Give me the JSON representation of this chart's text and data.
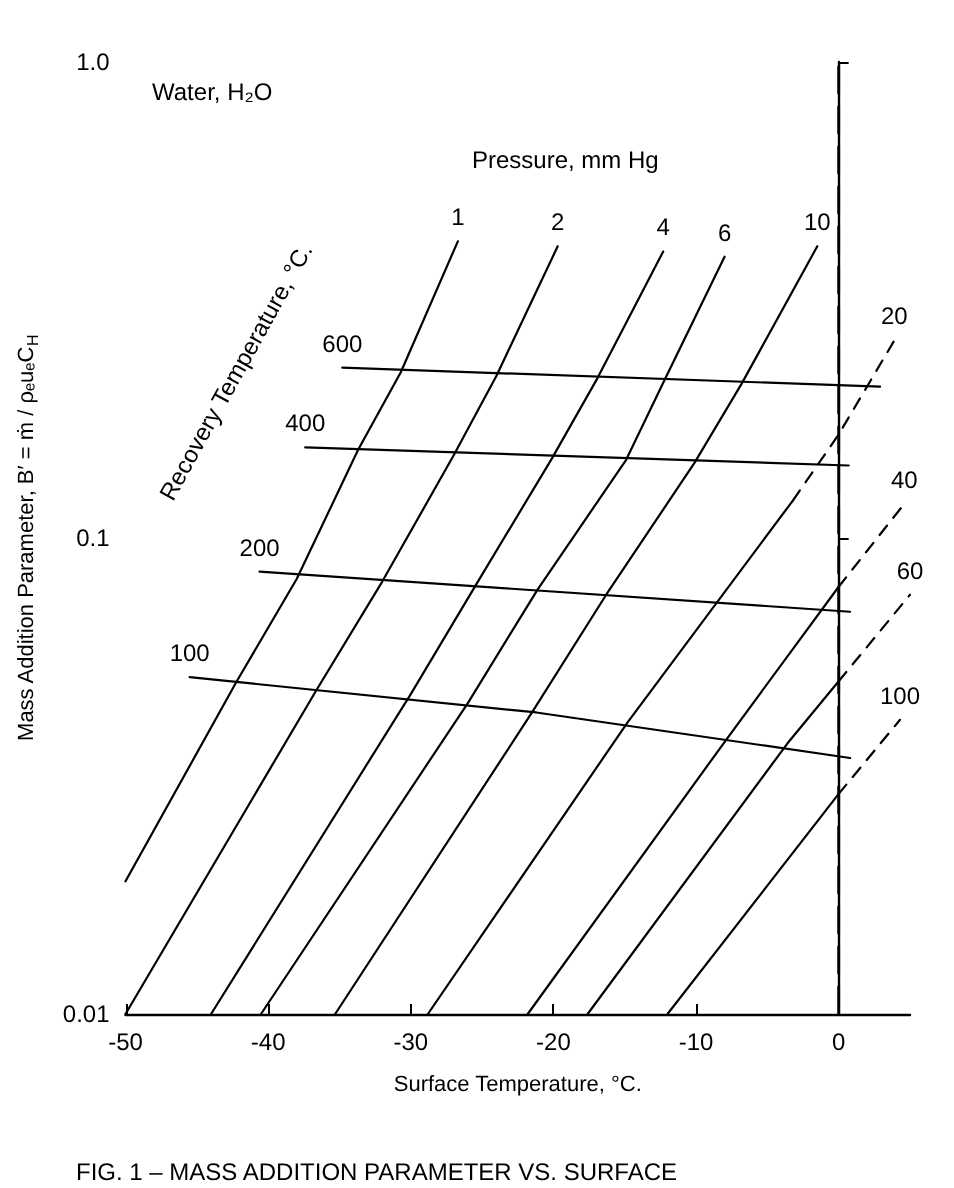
{
  "chart_data": {
    "type": "line",
    "xlabel": "Surface Temperature, °C.",
    "ylabel": "Mass Addition Parameter, B′ = ṁ / ρₑuₑC$_{H}$",
    "annotations": [
      "Water, H₂O",
      "Pressure, mm Hg",
      "Recovery Temperature, °C.",
      "FIG. 1 – MASS ADDITION PARAMETER VS. SURFACE"
    ],
    "log": "y",
    "xlim": [
      -50,
      5
    ],
    "xticks": [
      -50,
      -40,
      -30,
      -20,
      -10,
      0
    ],
    "ylim": [
      0.01,
      1
    ],
    "yticks": [
      0.01,
      0.1,
      {
        "value": 1,
        "label": "1.0"
      }
    ],
    "ref_lines": [
      {
        "axis": "x",
        "value": 0,
        "color": "#000000",
        "line_style": "dashed"
      }
    ],
    "series": [
      {
        "name": "1",
        "color": "#000000",
        "x": [
          -50,
          -42.2,
          -38,
          -33.7,
          -30.7,
          -26.7
        ],
        "values": [
          0.019,
          0.05,
          0.082,
          0.153,
          0.223,
          0.42
        ]
      },
      {
        "name": "2",
        "color": "#000000",
        "x": [
          -50,
          -36.6,
          -32,
          -27,
          -24,
          -19.7
        ],
        "values": [
          0.01,
          0.048,
          0.081,
          0.149,
          0.219,
          0.41
        ]
      },
      {
        "name": "4",
        "color": "#000000",
        "x": [
          -44,
          -30,
          -25.4,
          -20.1,
          -16.9,
          -12.3
        ],
        "values": [
          0.01,
          0.047,
          0.08,
          0.147,
          0.217,
          0.4
        ]
      },
      {
        "name": "6",
        "color": "#000000",
        "x": [
          -40.5,
          -26,
          -21.1,
          -14.9,
          -12.2,
          -8
        ],
        "values": [
          0.01,
          0.045,
          0.078,
          0.146,
          0.215,
          0.39
        ]
      },
      {
        "name": "10",
        "color": "#000000",
        "x": [
          -35.3,
          -21.5,
          -16.3,
          -10.1,
          -6.8,
          -1.5
        ],
        "values": [
          0.01,
          0.043,
          0.076,
          0.144,
          0.211,
          0.41
        ]
      },
      {
        "color": "#000000",
        "x": [
          -28.8,
          -14.8,
          -3.2
        ],
        "values": [
          0.01,
          0.041,
          0.12
        ]
      },
      {
        "name": "20",
        "color": "#000000",
        "line_style": "dashed",
        "x": [
          -3.2,
          0,
          3.9
        ],
        "values": [
          0.12,
          0.165,
          0.26
        ]
      },
      {
        "color": "#000000",
        "x": [
          -21.8,
          -7.8,
          0
        ],
        "values": [
          0.01,
          0.038,
          0.079
        ]
      },
      {
        "name": "40",
        "color": "#000000",
        "line_style": "dashed",
        "x": [
          0,
          4.6
        ],
        "values": [
          0.079,
          0.118
        ]
      },
      {
        "color": "#000000",
        "x": [
          -17.6,
          -3.6,
          0
        ],
        "values": [
          0.01,
          0.037,
          0.05
        ]
      },
      {
        "name": "60",
        "color": "#000000",
        "line_style": "dashed",
        "x": [
          0,
          5
        ],
        "values": [
          0.05,
          0.076
        ]
      },
      {
        "color": "#000000",
        "x": [
          -12,
          0
        ],
        "values": [
          0.01,
          0.029
        ]
      },
      {
        "name": "100",
        "color": "#000000",
        "line_style": "dashed",
        "x": [
          0,
          4.3
        ],
        "values": [
          0.029,
          0.0415
        ]
      },
      {
        "name": "600",
        "color": "#000000",
        "x": [
          2.9,
          -34.8
        ],
        "values": [
          0.208,
          0.228
        ]
      },
      {
        "name": "400",
        "color": "#000000",
        "x": [
          0.7,
          -37.4
        ],
        "values": [
          0.142,
          0.155
        ]
      },
      {
        "name": "200",
        "color": "#000000",
        "x": [
          0.8,
          -40.6
        ],
        "values": [
          0.07,
          0.085
        ]
      },
      {
        "name": "100",
        "color": "#000000",
        "x": [
          0.8,
          -21.2,
          -45.5
        ],
        "values": [
          0.0345,
          0.043,
          0.051
        ]
      }
    ]
  }
}
